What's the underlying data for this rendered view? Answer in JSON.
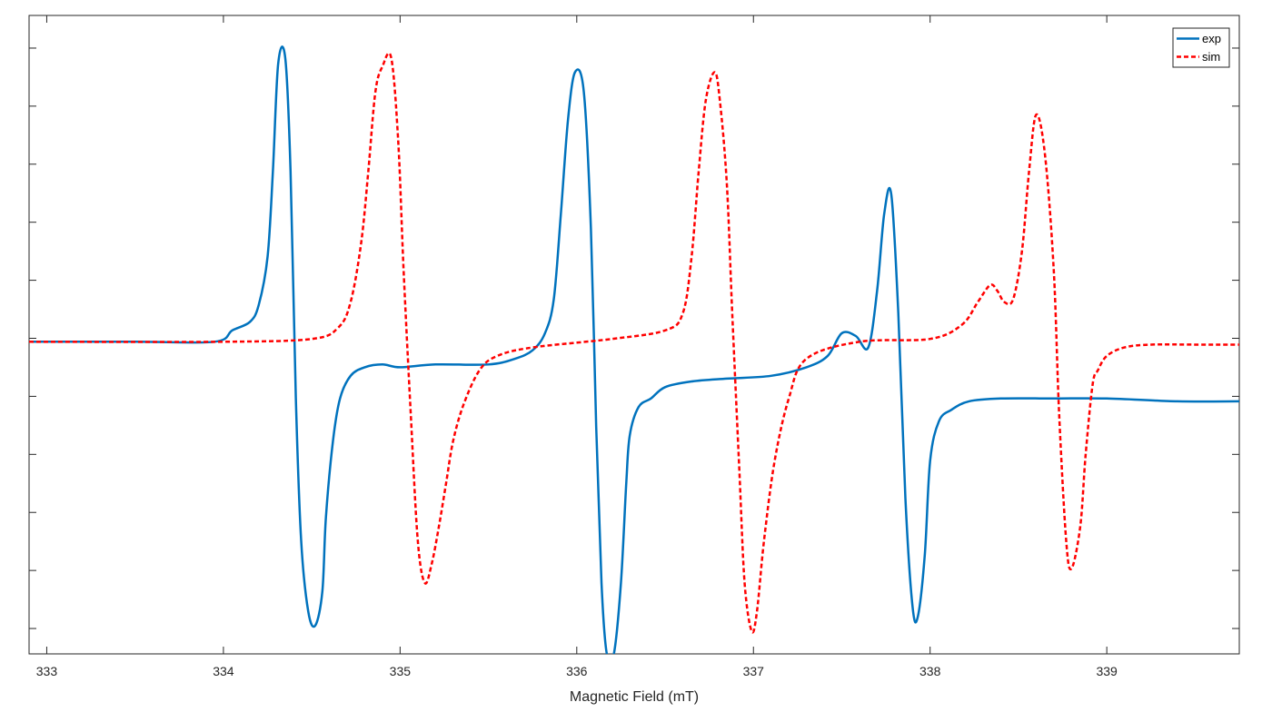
{
  "chart_data": {
    "type": "line",
    "title": "",
    "xlabel": "Magnetic Field (mT)",
    "ylabel": "",
    "xlim": [
      332.9,
      339.75
    ],
    "ylim": [
      -1.1,
      1.15
    ],
    "x_ticks": [
      333,
      334,
      335,
      336,
      337,
      338,
      339
    ],
    "y_tick_count": 11,
    "grid": false,
    "legend_position": "top-right",
    "series": [
      {
        "name": "exp",
        "color": "#0072BD",
        "style": "solid",
        "x": [
          332.9,
          333.5,
          333.95,
          334.05,
          334.15,
          334.2,
          334.25,
          334.28,
          334.31,
          334.35,
          334.38,
          334.41,
          334.44,
          334.48,
          334.52,
          334.56,
          334.58,
          334.62,
          334.66,
          334.72,
          334.8,
          334.9,
          335.0,
          335.2,
          335.5,
          335.65,
          335.75,
          335.82,
          335.87,
          335.91,
          335.95,
          335.99,
          336.04,
          336.08,
          336.11,
          336.14,
          336.17,
          336.21,
          336.25,
          336.28,
          336.3,
          336.35,
          336.42,
          336.5,
          336.65,
          336.85,
          337.1,
          337.3,
          337.42,
          337.5,
          337.58,
          337.65,
          337.7,
          337.74,
          337.78,
          337.82,
          337.86,
          337.9,
          337.93,
          337.97,
          338.0,
          338.05,
          338.12,
          338.22,
          338.4,
          338.7,
          339.0,
          339.4,
          339.75
        ],
        "values": [
          0.0,
          0.0,
          0.0,
          0.04,
          0.07,
          0.13,
          0.3,
          0.6,
          0.98,
          1.0,
          0.6,
          -0.2,
          -0.7,
          -0.95,
          -1.0,
          -0.88,
          -0.62,
          -0.35,
          -0.2,
          -0.12,
          -0.09,
          -0.08,
          -0.09,
          -0.08,
          -0.08,
          -0.06,
          -0.03,
          0.03,
          0.15,
          0.45,
          0.78,
          0.95,
          0.88,
          0.4,
          -0.3,
          -0.85,
          -1.1,
          -1.1,
          -0.85,
          -0.5,
          -0.33,
          -0.23,
          -0.2,
          -0.16,
          -0.14,
          -0.13,
          -0.12,
          -0.09,
          -0.05,
          0.03,
          0.02,
          -0.02,
          0.18,
          0.45,
          0.52,
          0.1,
          -0.55,
          -0.93,
          -0.97,
          -0.75,
          -0.42,
          -0.28,
          -0.24,
          -0.21,
          -0.2,
          -0.2,
          -0.2,
          -0.21,
          -0.21
        ]
      },
      {
        "name": "sim",
        "color": "#FF0000",
        "style": "dashed",
        "x": [
          332.9,
          334.0,
          334.5,
          334.65,
          334.72,
          334.78,
          334.82,
          334.86,
          334.9,
          334.95,
          334.99,
          335.02,
          335.06,
          335.1,
          335.14,
          335.18,
          335.22,
          335.26,
          335.3,
          335.36,
          335.45,
          335.55,
          335.75,
          336.2,
          336.5,
          336.6,
          336.65,
          336.69,
          336.73,
          336.78,
          336.81,
          336.85,
          336.88,
          336.92,
          336.95,
          336.99,
          337.02,
          337.06,
          337.12,
          337.2,
          337.3,
          337.6,
          338.0,
          338.18,
          338.27,
          338.34,
          338.38,
          338.42,
          338.47,
          338.52,
          338.56,
          338.6,
          338.65,
          338.7,
          338.73,
          338.77,
          338.8,
          338.85,
          338.88,
          338.92,
          338.95,
          339.0,
          339.1,
          339.25,
          339.5,
          339.75
        ],
        "values": [
          0.0,
          0.0,
          0.01,
          0.05,
          0.14,
          0.35,
          0.6,
          0.88,
          0.97,
          1.0,
          0.7,
          0.25,
          -0.25,
          -0.7,
          -0.85,
          -0.78,
          -0.65,
          -0.5,
          -0.35,
          -0.22,
          -0.1,
          -0.05,
          -0.02,
          0.01,
          0.04,
          0.1,
          0.3,
          0.6,
          0.85,
          0.95,
          0.85,
          0.55,
          0.1,
          -0.45,
          -0.85,
          -1.02,
          -0.95,
          -0.7,
          -0.42,
          -0.2,
          -0.06,
          0.0,
          0.01,
          0.06,
          0.14,
          0.2,
          0.18,
          0.14,
          0.15,
          0.32,
          0.6,
          0.8,
          0.66,
          0.25,
          -0.25,
          -0.7,
          -0.8,
          -0.65,
          -0.4,
          -0.15,
          -0.1,
          -0.05,
          -0.02,
          -0.01,
          -0.01,
          -0.01
        ]
      }
    ]
  }
}
